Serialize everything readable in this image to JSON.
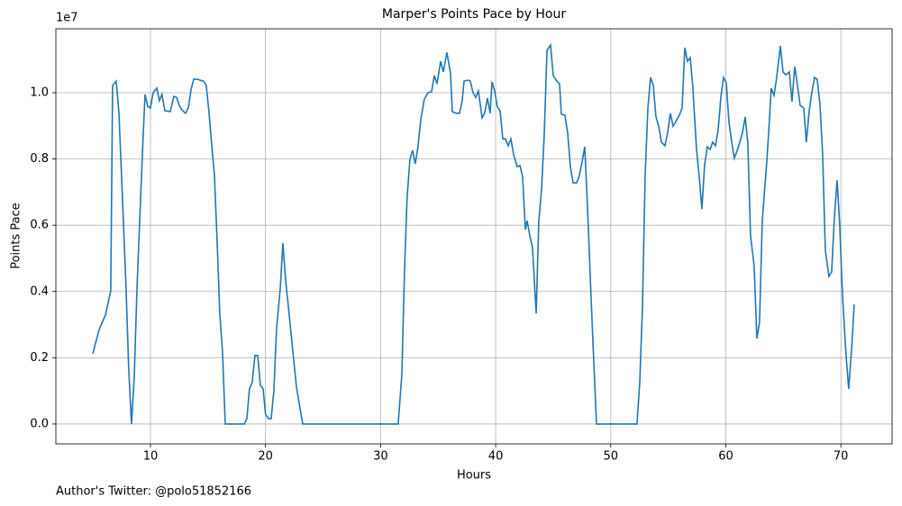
{
  "chart_data": {
    "type": "line",
    "title": "Marper's Points Pace by Hour",
    "x_label": "Hours",
    "y_label": "Points Pace",
    "y_offset_label": "1e7",
    "footer": "Author's Twitter: @polo51852166",
    "color": "#1f77b4",
    "grid": true,
    "xlim": [
      1.78,
      74.45
    ],
    "ylim": [
      -0.06,
      1.193
    ],
    "xticks": [
      10,
      20,
      30,
      40,
      50,
      60,
      70
    ],
    "yticks": [
      {
        "value": 0,
        "label": "0.0"
      },
      0.2,
      0.4,
      0.6,
      0.8,
      {
        "value": 1,
        "label": "1.0"
      }
    ],
    "x": [
      4.99,
      5.54,
      6.09,
      6.55,
      6.71,
      7.02,
      7.26,
      7.57,
      7.88,
      8.11,
      8.35,
      8.59,
      8.83,
      9.14,
      9.37,
      9.53,
      9.76,
      10.0,
      10.23,
      10.55,
      10.78,
      11.0,
      11.25,
      11.72,
      12.03,
      12.27,
      12.5,
      12.74,
      13.05,
      13.29,
      13.52,
      13.76,
      14.07,
      14.3,
      14.62,
      14.85,
      15.09,
      15.32,
      15.56,
      15.8,
      16.03,
      16.26,
      16.5,
      18.15,
      18.38,
      18.6,
      18.84,
      19.08,
      19.32,
      19.55,
      19.79,
      20.0,
      20.26,
      20.49,
      20.72,
      20.96,
      21.28,
      21.51,
      21.75,
      21.98,
      22.22,
      22.45,
      22.69,
      23.23,
      31.53,
      31.85,
      32.08,
      32.3,
      32.55,
      32.78,
      33.01,
      33.25,
      33.49,
      33.8,
      34.12,
      34.43,
      34.67,
      34.9,
      35.22,
      35.45,
      35.76,
      36.08,
      36.23,
      36.55,
      36.86,
      37.1,
      37.25,
      37.57,
      37.8,
      38.03,
      38.27,
      38.5,
      38.82,
      39.05,
      39.29,
      39.52,
      39.68,
      39.91,
      40.15,
      40.38,
      40.62,
      40.85,
      41.09,
      41.32,
      41.56,
      41.87,
      42.11,
      42.34,
      42.58,
      42.73,
      42.97,
      43.2,
      43.52,
      43.75,
      43.99,
      44.22,
      44.46,
      44.77,
      45.0,
      45.32,
      45.55,
      45.71,
      46.02,
      46.26,
      46.49,
      46.73,
      47.04,
      47.27,
      47.51,
      47.74,
      47.98,
      48.29,
      48.52,
      48.76,
      52.28,
      52.52,
      52.76,
      52.99,
      53.23,
      53.46,
      53.7,
      53.93,
      54.17,
      54.4,
      54.71,
      54.95,
      55.18,
      55.42,
      55.73,
      55.96,
      56.2,
      56.44,
      56.67,
      56.91,
      57.14,
      57.45,
      57.69,
      57.92,
      58.16,
      58.39,
      58.63,
      58.86,
      59.1,
      59.33,
      59.57,
      59.8,
      60.04,
      60.27,
      60.51,
      60.74,
      61.05,
      61.44,
      61.68,
      61.91,
      62.15,
      62.46,
      62.7,
      62.93,
      63.17,
      63.56,
      63.72,
      63.95,
      64.19,
      64.42,
      64.74,
      64.97,
      65.21,
      65.52,
      65.75,
      65.99,
      66.22,
      66.46,
      66.77,
      67.0,
      67.24,
      67.47,
      67.71,
      67.94,
      68.18,
      68.41,
      68.65,
      68.96,
      69.2,
      69.43,
      69.67,
      69.9,
      70.14,
      70.45,
      70.68,
      70.92,
      71.16
    ],
    "values": [
      0.212,
      0.285,
      0.329,
      0.402,
      1.022,
      1.035,
      0.94,
      0.679,
      0.41,
      0.166,
      0,
      0.139,
      0.41,
      0.679,
      0.872,
      0.995,
      0.959,
      0.954,
      1.0,
      1.014,
      0.976,
      0.995,
      0.946,
      0.943,
      0.989,
      0.986,
      0.962,
      0.948,
      0.938,
      0.954,
      1.008,
      1.041,
      1.041,
      1.038,
      1.035,
      1.022,
      0.94,
      0.845,
      0.75,
      0.546,
      0.329,
      0.22,
      0,
      0,
      0.016,
      0.106,
      0.125,
      0.207,
      0.207,
      0.117,
      0.106,
      0.03,
      0.016,
      0.016,
      0.098,
      0.288,
      0.41,
      0.546,
      0.432,
      0.356,
      0.274,
      0.193,
      0.111,
      0,
      0,
      0.152,
      0.465,
      0.682,
      0.799,
      0.826,
      0.785,
      0.837,
      0.918,
      0.981,
      1.0,
      1.003,
      1.052,
      1.027,
      1.095,
      1.063,
      1.122,
      1.057,
      0.943,
      0.938,
      0.938,
      0.978,
      1.035,
      1.038,
      1.035,
      1.0,
      0.986,
      1.005,
      0.924,
      0.94,
      0.984,
      0.938,
      1.033,
      1.005,
      0.957,
      0.946,
      0.861,
      0.861,
      0.84,
      0.861,
      0.813,
      0.777,
      0.78,
      0.747,
      0.587,
      0.614,
      0.568,
      0.533,
      0.334,
      0.614,
      0.709,
      0.872,
      1.128,
      1.144,
      1.052,
      1.035,
      1.027,
      0.935,
      0.932,
      0.878,
      0.777,
      0.728,
      0.728,
      0.75,
      0.791,
      0.837,
      0.655,
      0.383,
      0.193,
      0,
      0,
      0.125,
      0.356,
      0.75,
      0.954,
      1.046,
      1.022,
      0.927,
      0.899,
      0.851,
      0.84,
      0.88,
      0.938,
      0.899,
      0.918,
      0.932,
      0.954,
      1.136,
      1.095,
      1.106,
      1.014,
      0.832,
      0.747,
      0.649,
      0.783,
      0.837,
      0.829,
      0.851,
      0.84,
      0.886,
      0.986,
      1.046,
      1.03,
      0.913,
      0.851,
      0.802,
      0.832,
      0.878,
      0.927,
      0.851,
      0.568,
      0.478,
      0.258,
      0.307,
      0.614,
      0.791,
      0.878,
      1.014,
      0.992,
      1.046,
      1.141,
      1.063,
      1.054,
      1.063,
      0.973,
      1.079,
      1.024,
      0.962,
      0.954,
      0.851,
      0.943,
      1.0,
      1.046,
      1.041,
      0.965,
      0.818,
      0.524,
      0.446,
      0.459,
      0.622,
      0.736,
      0.601,
      0.389,
      0.207,
      0.106,
      0.22,
      0.361
    ]
  }
}
